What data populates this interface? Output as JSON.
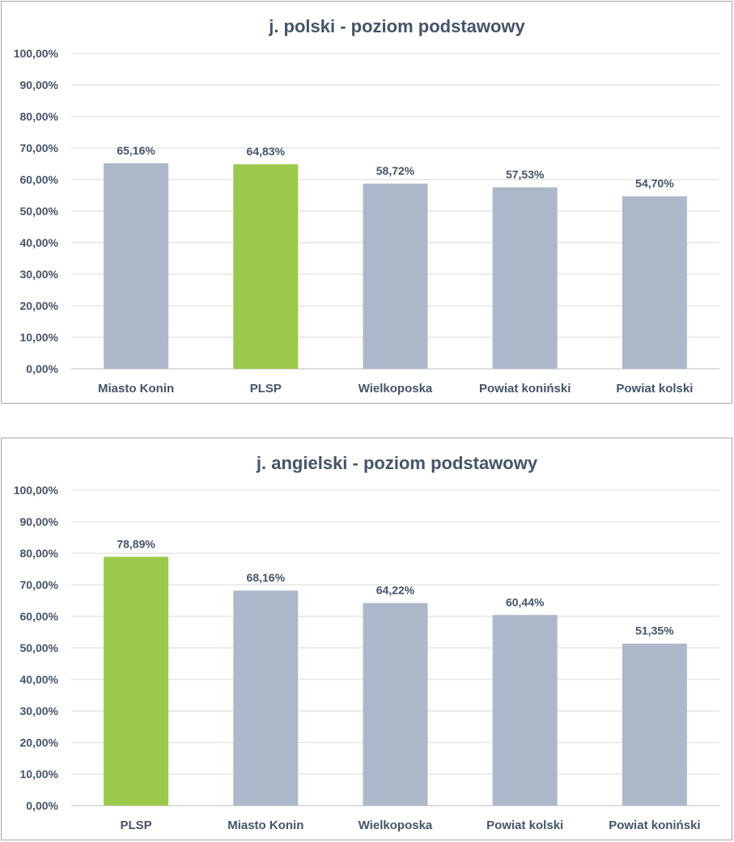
{
  "chart_data": [
    {
      "type": "bar",
      "title": "j. polski - poziom podstawowy",
      "categories": [
        "Miasto Konin",
        "PLSP",
        "Wielkoposka",
        "Powiat koniński",
        "Powiat kolski"
      ],
      "values": [
        65.16,
        64.83,
        58.72,
        57.53,
        54.7
      ],
      "data_labels": [
        "65,16%",
        "64,83%",
        "58,72%",
        "57,53%",
        "54,70%"
      ],
      "colors": [
        "#adb9ca",
        "#9bc94b",
        "#adb9ca",
        "#adb9ca",
        "#adb9ca"
      ],
      "ylim": [
        0,
        100
      ],
      "yticks": [
        "0,00%",
        "10,00%",
        "20,00%",
        "30,00%",
        "40,00%",
        "50,00%",
        "60,00%",
        "70,00%",
        "80,00%",
        "90,00%",
        "100,00%"
      ],
      "xlabel": "",
      "ylabel": "",
      "grid": true
    },
    {
      "type": "bar",
      "title": "j. angielski - poziom podstawowy",
      "categories": [
        "PLSP",
        "Miasto Konin",
        "Wielkoposka",
        "Powiat kolski",
        "Powiat koniński"
      ],
      "values": [
        78.89,
        68.16,
        64.22,
        60.44,
        51.35
      ],
      "data_labels": [
        "78,89%",
        "68,16%",
        "64,22%",
        "60,44%",
        "51,35%"
      ],
      "colors": [
        "#9bc94b",
        "#adb9ca",
        "#adb9ca",
        "#adb9ca",
        "#adb9ca"
      ],
      "ylim": [
        0,
        100
      ],
      "yticks": [
        "0,00%",
        "10,00%",
        "20,00%",
        "30,00%",
        "40,00%",
        "50,00%",
        "60,00%",
        "70,00%",
        "80,00%",
        "90,00%",
        "100,00%"
      ],
      "xlabel": "",
      "ylabel": "",
      "grid": true
    }
  ],
  "colors": {
    "grid": "#d9d9d9",
    "axis": "#bfbfbf",
    "text": "#44546a"
  }
}
